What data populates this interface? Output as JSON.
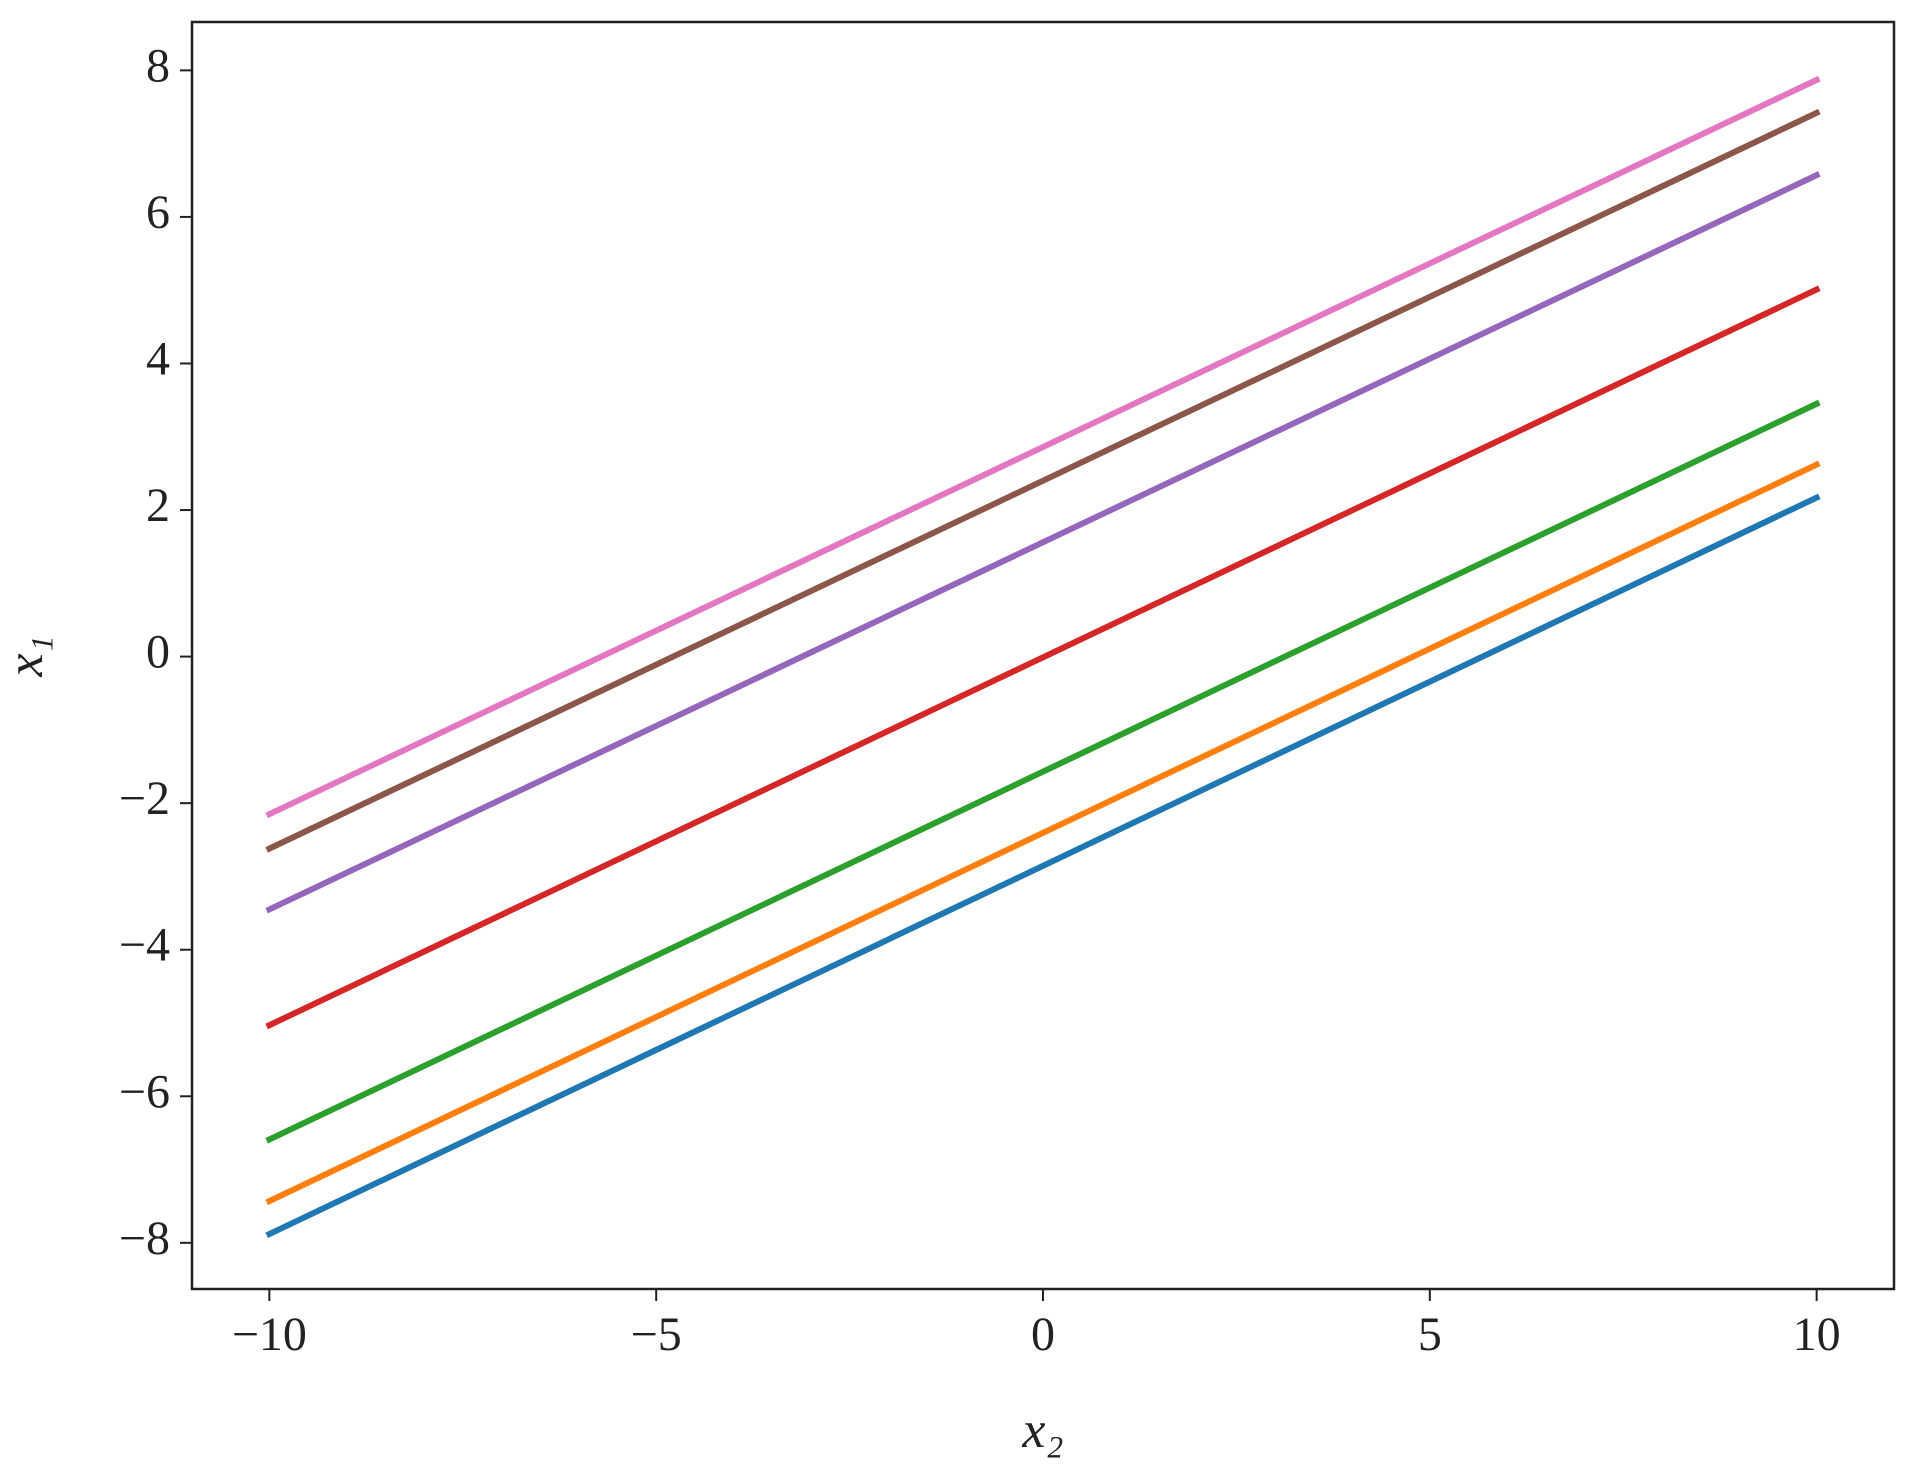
{
  "chart_data": {
    "type": "line",
    "x_label": "x₂",
    "y_label": "x₁",
    "x": [
      -10,
      10
    ],
    "series": [
      {
        "color": "#1f77b4",
        "values": [
          -7.88,
          2.17
        ]
      },
      {
        "color": "#ff7f0e",
        "values": [
          -7.43,
          2.62
        ]
      },
      {
        "color": "#2ca02c",
        "values": [
          -6.59,
          3.45
        ]
      },
      {
        "color": "#d62728",
        "values": [
          -5.03,
          5.01
        ]
      },
      {
        "color": "#9467bd",
        "values": [
          -3.45,
          6.57
        ]
      },
      {
        "color": "#8c564b",
        "values": [
          -2.62,
          7.42
        ]
      },
      {
        "color": "#e377c2",
        "values": [
          -2.15,
          7.87
        ]
      }
    ],
    "xlim": [
      -11,
      11
    ],
    "ylim": [
      -8.63,
      8.66
    ],
    "xticks": [
      {
        "value": -10,
        "label": "−10"
      },
      {
        "value": -5,
        "label": "−5"
      },
      0,
      5,
      10
    ],
    "yticks": [
      {
        "value": -8,
        "label": "−8"
      },
      {
        "value": -6,
        "label": "−6"
      },
      {
        "value": -4,
        "label": "−4"
      },
      {
        "value": -2,
        "label": "−2"
      },
      0,
      2,
      4,
      6,
      8
    ],
    "grid": false
  }
}
